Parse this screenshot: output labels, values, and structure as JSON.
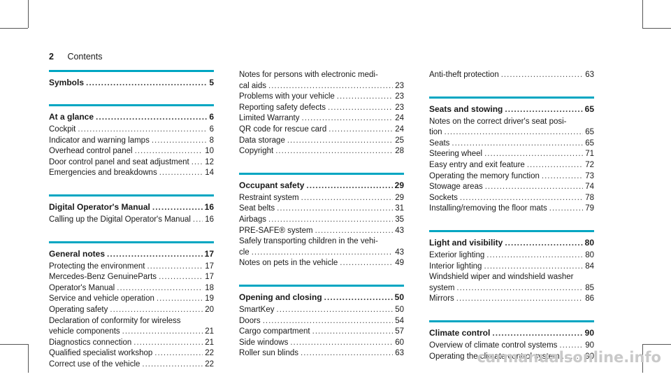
{
  "header": {
    "page_number": "2",
    "title": "Contents"
  },
  "columns": [
    {
      "sections": [
        {
          "heading": "Symbols",
          "page": "5",
          "entries": []
        },
        {
          "heading": "At a glance",
          "page": "6",
          "entries": [
            {
              "text": "Cockpit",
              "page": "6"
            },
            {
              "text": "Indicator and warning lamps",
              "page": "8"
            },
            {
              "text": "Overhead control panel",
              "page": "10"
            },
            {
              "text": "Door control panel and seat adjustment",
              "page": "12"
            },
            {
              "text": "Emergencies and breakdowns",
              "page": "14"
            }
          ]
        },
        {
          "heading": "Digital Operator's Manual",
          "page": "16",
          "entries": [
            {
              "text": "Calling up the Digital Operator's Manual",
              "page": "16"
            }
          ]
        },
        {
          "heading": "General notes",
          "page": "17",
          "entries": [
            {
              "text": "Protecting the environment",
              "page": "17"
            },
            {
              "text": "Mercedes-Benz GenuineParts",
              "page": "17"
            },
            {
              "text": "Operator's Manual",
              "page": "18"
            },
            {
              "text": "Service and vehicle operation",
              "page": "19"
            },
            {
              "text": "Operating safety",
              "page": "20"
            },
            {
              "text": "Declaration of conformity for wireless",
              "page": ""
            },
            {
              "text": "vehicle components",
              "page": "21"
            },
            {
              "text": "Diagnostics connection",
              "page": "21"
            },
            {
              "text": "Qualified specialist workshop",
              "page": "22"
            },
            {
              "text": "Correct use of the vehicle",
              "page": "22"
            }
          ]
        }
      ]
    },
    {
      "sections": [
        {
          "heading": "",
          "page": "",
          "entries": [
            {
              "text": "Notes for persons with electronic medi-",
              "page": ""
            },
            {
              "text": "cal aids",
              "page": "23"
            },
            {
              "text": "Problems with your vehicle",
              "page": "23"
            },
            {
              "text": "Reporting safety defects",
              "page": "23"
            },
            {
              "text": "Limited Warranty",
              "page": "24"
            },
            {
              "text": "QR code for rescue card",
              "page": "24"
            },
            {
              "text": "Data storage",
              "page": "25"
            },
            {
              "text": "Copyright",
              "page": "28"
            }
          ]
        },
        {
          "heading": "Occupant safety",
          "page": "29",
          "entries": [
            {
              "text": "Restraint system",
              "page": "29"
            },
            {
              "text": "Seat belts",
              "page": "31"
            },
            {
              "text": "Airbags",
              "page": "35"
            },
            {
              "text": "PRE-SAFE® system",
              "page": "43"
            },
            {
              "text": "Safely transporting children in the vehi-",
              "page": ""
            },
            {
              "text": "cle",
              "page": "43"
            },
            {
              "text": "Notes on pets in the vehicle",
              "page": "49"
            }
          ]
        },
        {
          "heading": "Opening and closing",
          "page": "50",
          "entries": [
            {
              "text": "SmartKey",
              "page": "50"
            },
            {
              "text": "Doors",
              "page": "54"
            },
            {
              "text": "Cargo compartment",
              "page": "57"
            },
            {
              "text": "Side windows",
              "page": "60"
            },
            {
              "text": "Roller sun blinds",
              "page": "63"
            }
          ]
        }
      ]
    },
    {
      "sections": [
        {
          "heading": "",
          "page": "",
          "entries": [
            {
              "text": "Anti-theft protection",
              "page": "63"
            }
          ]
        },
        {
          "heading": "Seats and stowing",
          "page": "65",
          "entries": [
            {
              "text": "Notes on the correct driver's seat posi-",
              "page": ""
            },
            {
              "text": "tion",
              "page": "65"
            },
            {
              "text": "Seats",
              "page": "65"
            },
            {
              "text": "Steering wheel",
              "page": "71"
            },
            {
              "text": "Easy entry and exit feature",
              "page": "72"
            },
            {
              "text": "Operating the memory function",
              "page": "73"
            },
            {
              "text": "Stowage areas",
              "page": "74"
            },
            {
              "text": "Sockets",
              "page": "78"
            },
            {
              "text": "Installing/removing the floor mats",
              "page": "79"
            }
          ]
        },
        {
          "heading": "Light and visibility",
          "page": "80",
          "entries": [
            {
              "text": "Exterior lighting",
              "page": "80"
            },
            {
              "text": "Interior lighting",
              "page": "84"
            },
            {
              "text": "Windshield wiper and windshield washer",
              "page": ""
            },
            {
              "text": "system",
              "page": "85"
            },
            {
              "text": "Mirrors",
              "page": "86"
            }
          ]
        },
        {
          "heading": "Climate control",
          "page": "90",
          "entries": [
            {
              "text": "Overview of climate control systems",
              "page": "90"
            },
            {
              "text": "Operating the climate control system",
              "page": "90"
            }
          ]
        }
      ]
    }
  ],
  "watermark": "carmanualsonline.info",
  "colors": {
    "accent_rule": "#00a6c2"
  }
}
